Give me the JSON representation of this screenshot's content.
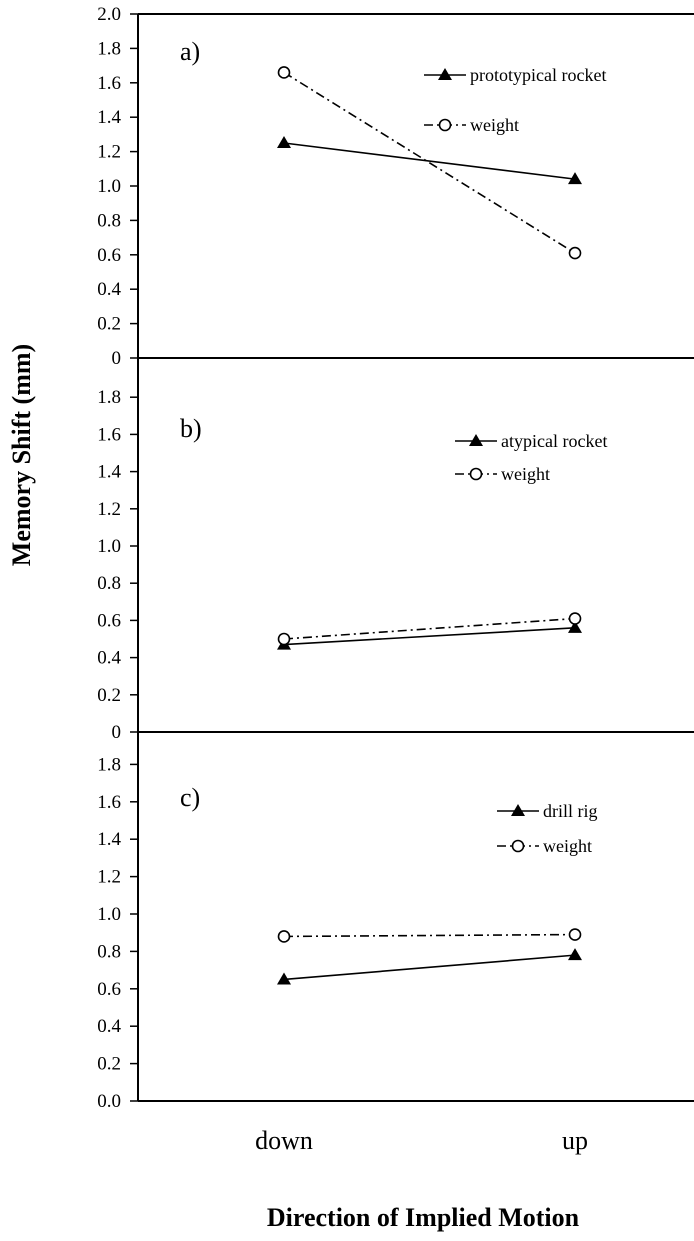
{
  "figure": {
    "ylabel": "Memory Shift (mm)",
    "xlabel": "Direction of Implied Motion"
  },
  "chart_data": [
    {
      "type": "line",
      "panel_label": "a)",
      "categories": [
        "down",
        "up"
      ],
      "ylim": [
        0,
        2.0
      ],
      "yticks": [
        "2.0",
        "1.8",
        "1.6",
        "1.4",
        "1.2",
        "1.0",
        "0.8",
        "0.6",
        "0.4",
        "0.2",
        "0"
      ],
      "series": [
        {
          "name": "prototypical rocket",
          "marker": "filled-triangle",
          "line": "solid",
          "values": [
            1.25,
            1.04
          ]
        },
        {
          "name": "weight",
          "marker": "open-circle",
          "line": "dash-dot",
          "values": [
            1.66,
            0.61
          ]
        }
      ]
    },
    {
      "type": "line",
      "panel_label": "b)",
      "categories": [
        "down",
        "up"
      ],
      "ylim": [
        0,
        2.0
      ],
      "yticks": [
        "1.8",
        "1.6",
        "1.4",
        "1.2",
        "1.0",
        "0.8",
        "0.6",
        "0.4",
        "0.2",
        "0"
      ],
      "series": [
        {
          "name": "atypical rocket",
          "marker": "filled-triangle",
          "line": "solid",
          "values": [
            0.47,
            0.56
          ]
        },
        {
          "name": "weight",
          "marker": "open-circle",
          "line": "dash-dot",
          "values": [
            0.5,
            0.61
          ]
        }
      ]
    },
    {
      "type": "line",
      "panel_label": "c)",
      "categories": [
        "down",
        "up"
      ],
      "ylim": [
        0,
        2.0
      ],
      "yticks": [
        "1.8",
        "1.6",
        "1.4",
        "1.2",
        "1.0",
        "0.8",
        "0.6",
        "0.4",
        "0.2",
        "0.0"
      ],
      "series": [
        {
          "name": "drill rig",
          "marker": "filled-triangle",
          "line": "solid",
          "values": [
            0.65,
            0.78
          ]
        },
        {
          "name": "weight",
          "marker": "open-circle",
          "line": "dash-dot",
          "values": [
            0.88,
            0.89
          ]
        }
      ]
    }
  ]
}
